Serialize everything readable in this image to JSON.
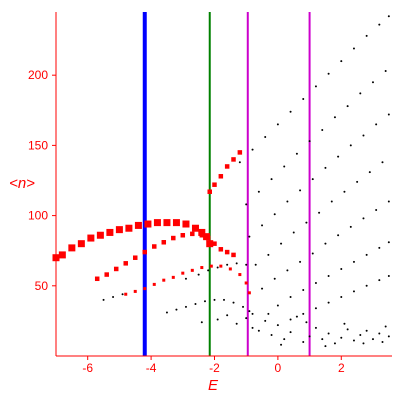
{
  "chart_data": {
    "type": "scatter",
    "xlabel": "E",
    "ylabel": "<n>",
    "xlim": [
      -7.0,
      3.6
    ],
    "ylim": [
      0,
      245
    ],
    "x_ticks": [
      -6,
      -4,
      -2,
      0,
      2
    ],
    "y_ticks": [
      50,
      100,
      150,
      200
    ],
    "grid": false,
    "legend": "none",
    "colors": {
      "axis": "#ff0000",
      "red_points": "#ff0000",
      "black_points": "#000000",
      "line_blue": "#0000ff",
      "line_green": "#008000",
      "line_magenta": "#cc00cc"
    },
    "vertical_lines": [
      {
        "x": -4.2,
        "color": "#0000ff"
      },
      {
        "x": -2.15,
        "color": "#008000"
      },
      {
        "x": -0.95,
        "color": "#cc00cc"
      },
      {
        "x": 1.0,
        "color": "#cc00cc"
      }
    ],
    "series": [
      {
        "color": "#ff0000",
        "marker": "square",
        "style": "thick",
        "points": [
          [
            -7.0,
            70
          ],
          [
            -6.8,
            72
          ],
          [
            -6.5,
            77
          ],
          [
            -6.2,
            80
          ],
          [
            -5.9,
            84
          ],
          [
            -5.6,
            86
          ],
          [
            -5.3,
            88
          ],
          [
            -5.0,
            90
          ],
          [
            -4.7,
            91
          ],
          [
            -4.4,
            93
          ],
          [
            -4.1,
            94
          ],
          [
            -3.8,
            95
          ],
          [
            -3.5,
            95
          ],
          [
            -3.2,
            95
          ],
          [
            -2.9,
            94
          ],
          [
            -2.6,
            91
          ],
          [
            -2.4,
            88
          ],
          [
            -2.25,
            85
          ],
          [
            -2.15,
            80
          ]
        ]
      },
      {
        "color": "#ff0000",
        "marker": "square",
        "style": "medium",
        "points": [
          [
            -2.15,
            117
          ],
          [
            -2.0,
            122
          ],
          [
            -1.8,
            128
          ],
          [
            -1.6,
            135
          ],
          [
            -1.4,
            140
          ],
          [
            -1.2,
            145
          ]
        ]
      },
      {
        "color": "#ff0000",
        "marker": "square",
        "style": "medium",
        "points": [
          [
            -5.7,
            55
          ],
          [
            -5.4,
            58
          ],
          [
            -5.1,
            62
          ],
          [
            -4.8,
            66
          ],
          [
            -4.5,
            70
          ],
          [
            -4.2,
            74
          ],
          [
            -3.9,
            78
          ],
          [
            -3.6,
            81
          ],
          [
            -3.3,
            84
          ],
          [
            -3.0,
            86
          ],
          [
            -2.7,
            87
          ],
          [
            -2.4,
            86
          ],
          [
            -2.2,
            84
          ],
          [
            -2.0,
            80
          ],
          [
            -1.8,
            76
          ],
          [
            -1.6,
            74
          ],
          [
            -1.4,
            72
          ]
        ]
      },
      {
        "color": "#ff0000",
        "marker": "square",
        "style": "small",
        "points": [
          [
            -4.8,
            44
          ],
          [
            -4.5,
            46
          ],
          [
            -4.2,
            48
          ],
          [
            -3.9,
            51
          ],
          [
            -3.6,
            54
          ],
          [
            -3.3,
            56
          ],
          [
            -3.0,
            59
          ],
          [
            -2.7,
            61
          ],
          [
            -2.4,
            63
          ],
          [
            -2.1,
            64
          ],
          [
            -1.8,
            64
          ],
          [
            -1.5,
            62
          ],
          [
            -1.2,
            58
          ],
          [
            -1.0,
            52
          ],
          [
            -0.9,
            45
          ]
        ]
      },
      {
        "color": "#000000",
        "marker": "dot",
        "style": "tiny",
        "points": [
          [
            -5.5,
            40
          ],
          [
            -5.2,
            42
          ],
          [
            -4.9,
            44
          ],
          [
            -2.9,
            55
          ],
          [
            -2.5,
            58
          ],
          [
            -2.2,
            61
          ],
          [
            -1.9,
            63
          ],
          [
            -1.6,
            65
          ],
          [
            -1.3,
            66
          ],
          [
            -1.0,
            65
          ]
        ]
      },
      {
        "color": "#000000",
        "marker": "dot",
        "style": "tiny",
        "points": [
          [
            -3.5,
            31
          ],
          [
            -3.2,
            33
          ],
          [
            -2.9,
            35
          ],
          [
            -2.6,
            37
          ],
          [
            -2.3,
            39
          ],
          [
            -2.0,
            40
          ],
          [
            -1.7,
            40
          ],
          [
            -1.4,
            38
          ],
          [
            -1.1,
            35
          ],
          [
            -0.8,
            30
          ]
        ]
      },
      {
        "color": "#000000",
        "marker": "dot",
        "style": "tiny",
        "points": [
          [
            -1.2,
            138
          ],
          [
            -0.8,
            147
          ],
          [
            -0.4,
            156
          ],
          [
            0.0,
            165
          ],
          [
            0.4,
            174
          ],
          [
            0.8,
            183
          ],
          [
            1.2,
            192
          ],
          [
            1.6,
            201
          ],
          [
            2.0,
            210
          ],
          [
            2.4,
            219
          ],
          [
            2.8,
            228
          ],
          [
            3.2,
            236
          ],
          [
            3.5,
            242
          ]
        ]
      },
      {
        "color": "#000000",
        "marker": "dot",
        "style": "tiny",
        "points": [
          [
            -1.0,
            108
          ],
          [
            -0.6,
            117
          ],
          [
            -0.2,
            126
          ],
          [
            0.2,
            135
          ],
          [
            0.6,
            144
          ],
          [
            1.0,
            153
          ],
          [
            1.4,
            161
          ],
          [
            1.8,
            170
          ],
          [
            2.2,
            178
          ],
          [
            2.6,
            187
          ],
          [
            3.0,
            195
          ],
          [
            3.4,
            203
          ]
        ]
      },
      {
        "color": "#000000",
        "marker": "dot",
        "style": "tiny",
        "points": [
          [
            -0.9,
            85
          ],
          [
            -0.5,
            93
          ],
          [
            -0.1,
            101
          ],
          [
            0.3,
            110
          ],
          [
            0.7,
            118
          ],
          [
            1.1,
            126
          ],
          [
            1.5,
            134
          ],
          [
            1.9,
            142
          ],
          [
            2.3,
            150
          ],
          [
            2.7,
            157
          ],
          [
            3.1,
            165
          ],
          [
            3.5,
            172
          ]
        ]
      },
      {
        "color": "#000000",
        "marker": "dot",
        "style": "tiny",
        "points": [
          [
            -0.7,
            65
          ],
          [
            -0.3,
            72
          ],
          [
            0.1,
            80
          ],
          [
            0.5,
            88
          ],
          [
            0.9,
            95
          ],
          [
            1.3,
            102
          ],
          [
            1.7,
            110
          ],
          [
            2.1,
            117
          ],
          [
            2.5,
            124
          ],
          [
            2.9,
            131
          ],
          [
            3.3,
            138
          ]
        ]
      },
      {
        "color": "#000000",
        "marker": "dot",
        "style": "tiny",
        "points": [
          [
            -0.5,
            48
          ],
          [
            -0.1,
            55
          ],
          [
            0.3,
            61
          ],
          [
            0.7,
            67
          ],
          [
            1.1,
            73
          ],
          [
            1.5,
            80
          ],
          [
            1.9,
            86
          ],
          [
            2.3,
            92
          ],
          [
            2.7,
            98
          ],
          [
            3.1,
            104
          ],
          [
            3.5,
            110
          ]
        ]
      },
      {
        "color": "#000000",
        "marker": "dot",
        "style": "tiny",
        "points": [
          [
            0.0,
            36
          ],
          [
            0.4,
            42
          ],
          [
            0.8,
            47
          ],
          [
            1.2,
            52
          ],
          [
            1.6,
            57
          ],
          [
            2.0,
            62
          ],
          [
            2.4,
            67
          ],
          [
            2.8,
            72
          ],
          [
            3.2,
            77
          ],
          [
            3.5,
            81
          ]
        ]
      },
      {
        "color": "#000000",
        "marker": "dot",
        "style": "tiny",
        "points": [
          [
            0.4,
            26
          ],
          [
            0.8,
            30
          ],
          [
            1.2,
            34
          ],
          [
            1.6,
            38
          ],
          [
            2.0,
            42
          ],
          [
            2.4,
            46
          ],
          [
            2.8,
            50
          ],
          [
            3.2,
            54
          ],
          [
            3.5,
            57
          ]
        ]
      },
      {
        "color": "#000000",
        "marker": "dot",
        "style": "tiny",
        "points": [
          [
            -2.4,
            24
          ],
          [
            -1.9,
            26
          ],
          [
            -1.6,
            29
          ],
          [
            -1.3,
            23
          ],
          [
            -1.0,
            27
          ],
          [
            -0.8,
            20
          ],
          [
            -0.6,
            18
          ],
          [
            -0.4,
            25
          ],
          [
            -0.2,
            15
          ],
          [
            0.0,
            22
          ],
          [
            0.2,
            12
          ],
          [
            0.4,
            17
          ],
          [
            0.6,
            28
          ],
          [
            0.8,
            10
          ],
          [
            1.0,
            14
          ],
          [
            1.2,
            20
          ],
          [
            1.4,
            12
          ],
          [
            1.6,
            16
          ],
          [
            1.8,
            9
          ],
          [
            2.0,
            13
          ],
          [
            2.2,
            19
          ],
          [
            2.4,
            11
          ],
          [
            2.6,
            15
          ],
          [
            2.8,
            18
          ],
          [
            3.0,
            12
          ],
          [
            3.2,
            16
          ],
          [
            3.4,
            21
          ],
          [
            3.5,
            14
          ],
          [
            -0.9,
            32
          ],
          [
            -0.3,
            30
          ],
          [
            0.1,
            8
          ],
          [
            0.9,
            24
          ],
          [
            1.5,
            7
          ],
          [
            2.1,
            23
          ],
          [
            2.7,
            9
          ],
          [
            3.3,
            10
          ]
        ]
      }
    ]
  }
}
